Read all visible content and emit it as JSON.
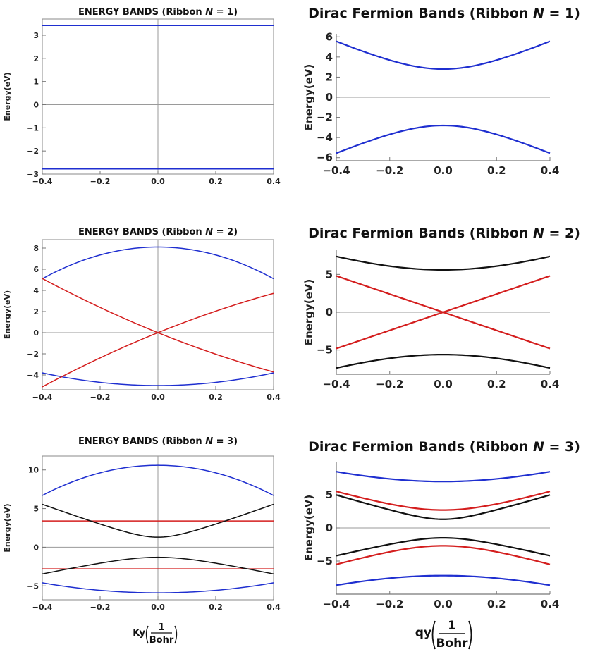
{
  "chart_data": [
    {
      "id": "left-n1",
      "type": "line",
      "title": "ENERGY BANDS (Ribbon N = 1)",
      "title_prefix": "ENERGY BANDS (Ribbon ",
      "title_n": "N",
      "title_suffix": " = 1)",
      "ylabel": "Energy(eV)",
      "xlabel": "",
      "xlim": [
        -0.4,
        0.4
      ],
      "ylim": [
        -3.0,
        3.7
      ],
      "xticks": [
        -0.4,
        -0.2,
        0.0,
        0.2,
        0.4
      ],
      "xtick_labels": [
        "−0.4",
        "−0.2",
        "0.0",
        "0.2",
        "0.4"
      ],
      "yticks": [
        -3,
        -2,
        -1,
        0,
        1,
        2,
        3
      ],
      "ytick_labels": [
        "−3",
        "−2",
        "−1",
        "0",
        "1",
        "2",
        "3"
      ],
      "series": [
        {
          "name": "band 1",
          "color": "#1f2fd0",
          "kind": "const",
          "e0": 3.42
        },
        {
          "name": "band 2",
          "color": "#1f2fd0",
          "kind": "const",
          "e0": -2.78
        }
      ]
    },
    {
      "id": "right-n1",
      "type": "line",
      "title": "Dirac Fermion Bands (Ribbon N = 1)",
      "title_prefix": "Dirac Fermion Bands (Ribbon ",
      "title_n": "N",
      "title_suffix": " = 1)",
      "ylabel": "Energy(eV)",
      "xlabel": "",
      "xlim": [
        -0.4,
        0.4
      ],
      "ylim": [
        -6.3,
        6.3
      ],
      "xticks": [
        -0.4,
        -0.2,
        0.0,
        0.2,
        0.4
      ],
      "xtick_labels": [
        "−0.4",
        "−0.2",
        "0.0",
        "0.2",
        "0.4"
      ],
      "yticks": [
        -6,
        -4,
        -2,
        0,
        2,
        4,
        6
      ],
      "ytick_labels": [
        "−6",
        "−4",
        "−2",
        "0",
        "2",
        "4",
        "6"
      ],
      "series": [
        {
          "name": "upper band",
          "color": "#1f2fd0",
          "kind": "hyp",
          "e0": 2.8,
          "v": 12.0
        },
        {
          "name": "lower band",
          "color": "#1f2fd0",
          "kind": "hyp",
          "e0": -2.8,
          "v": 12.0
        }
      ]
    },
    {
      "id": "left-n2",
      "type": "line",
      "title": "ENERGY BANDS (Ribbon N = 2)",
      "title_prefix": "ENERGY BANDS (Ribbon ",
      "title_n": "N",
      "title_suffix": " = 2)",
      "ylabel": "Energy(eV)",
      "xlabel": "",
      "xlim": [
        -0.4,
        0.4
      ],
      "ylim": [
        -5.4,
        8.8
      ],
      "xticks": [
        -0.4,
        -0.2,
        0.0,
        0.2,
        0.4
      ],
      "xtick_labels": [
        "−0.4",
        "−0.2",
        "0.0",
        "0.2",
        "0.4"
      ],
      "yticks": [
        -4,
        -2,
        0,
        2,
        4,
        6,
        8
      ],
      "ytick_labels": [
        "−4",
        "−2",
        "0",
        "2",
        "4",
        "6",
        "8"
      ],
      "series": [
        {
          "name": "blue upper",
          "color": "#1f2fd0",
          "kind": "para",
          "e0": 8.1,
          "a": -18.75
        },
        {
          "name": "blue lower",
          "color": "#1f2fd0",
          "kind": "para",
          "e0": -5.0,
          "a": 7.5
        },
        {
          "name": "red rising",
          "color": "#d41e1e",
          "kind": "curve",
          "e0": 0.0,
          "b": 11.05,
          "c": 4.4
        },
        {
          "name": "red falling",
          "color": "#d41e1e",
          "kind": "curve",
          "e0": 0.0,
          "b": -11.05,
          "c": 4.4
        }
      ]
    },
    {
      "id": "right-n2",
      "type": "line",
      "title": "Dirac Fermion Bands (Ribbon N = 2)",
      "title_prefix": "Dirac Fermion Bands (Ribbon ",
      "title_n": "N",
      "title_suffix": " = 2)",
      "ylabel": "Energy(eV)",
      "xlabel": "",
      "xlim": [
        -0.4,
        0.4
      ],
      "ylim": [
        -8.2,
        8.2
      ],
      "xticks": [
        -0.4,
        -0.2,
        0.0,
        0.2,
        0.4
      ],
      "xtick_labels": [
        "−0.4",
        "−0.2",
        "0.0",
        "0.2",
        "0.4"
      ],
      "yticks": [
        -5,
        0,
        5
      ],
      "ytick_labels": [
        "−5",
        "0",
        "5"
      ],
      "series": [
        {
          "name": "black upper",
          "color": "#111111",
          "kind": "hyp",
          "e0": 5.6,
          "v": 12.0
        },
        {
          "name": "black lower",
          "color": "#111111",
          "kind": "hyp",
          "e0": -5.6,
          "v": 12.0
        },
        {
          "name": "red rising",
          "color": "#d41e1e",
          "kind": "lin",
          "slope": 12.0
        },
        {
          "name": "red falling",
          "color": "#d41e1e",
          "kind": "lin",
          "slope": -12.0
        }
      ]
    },
    {
      "id": "left-n3",
      "type": "line",
      "title": "ENERGY BANDS (Ribbon N = 3)",
      "title_prefix": "ENERGY BANDS (Ribbon ",
      "title_n": "N",
      "title_suffix": " = 3)",
      "ylabel": "Energy(eV)",
      "xlabel": "Ky(1/Bohr)",
      "xlim": [
        -0.4,
        0.4
      ],
      "ylim": [
        -6.8,
        11.8
      ],
      "xticks": [
        -0.4,
        -0.2,
        0.0,
        0.2,
        0.4
      ],
      "xtick_labels": [
        "−0.4",
        "−0.2",
        "0.0",
        "0.2",
        "0.4"
      ],
      "yticks": [
        -5,
        0,
        5,
        10
      ],
      "ytick_labels": [
        "−5",
        "0",
        "5",
        "10"
      ],
      "series": [
        {
          "name": "blue upper",
          "color": "#1f2fd0",
          "kind": "para",
          "e0": 10.6,
          "a": -24.4
        },
        {
          "name": "blue lower",
          "color": "#1f2fd0",
          "kind": "para",
          "e0": -5.9,
          "a": 8.1
        },
        {
          "name": "red flat upper",
          "color": "#d41e1e",
          "kind": "const",
          "e0": 3.4
        },
        {
          "name": "red flat lower",
          "color": "#d41e1e",
          "kind": "const",
          "e0": -2.8
        },
        {
          "name": "black upper",
          "color": "#111111",
          "kind": "hyp",
          "e0": 1.3,
          "v": 13.5
        },
        {
          "name": "black lower",
          "color": "#111111",
          "kind": "hyp",
          "e0": -1.3,
          "v": 8.0
        }
      ]
    },
    {
      "id": "right-n3",
      "type": "line",
      "title": "Dirac Fermion Bands (Ribbon N = 3)",
      "title_prefix": "Dirac Fermion Bands (Ribbon ",
      "title_n": "N",
      "title_suffix": " = 3)",
      "ylabel": "Energy(eV)",
      "xlabel": "qy(1/Bohr)",
      "xlim": [
        -0.4,
        0.4
      ],
      "ylim": [
        -10.0,
        10.0
      ],
      "xticks": [
        -0.4,
        -0.2,
        0.0,
        0.2,
        0.4
      ],
      "xtick_labels": [
        "−0.4",
        "−0.2",
        "0.0",
        "0.2",
        "0.4"
      ],
      "yticks": [
        -5,
        0,
        5
      ],
      "ytick_labels": [
        "−5",
        "0",
        "5"
      ],
      "series": [
        {
          "name": "blue upper",
          "color": "#1f2fd0",
          "kind": "hyp",
          "e0": 7.0,
          "v": 12.0
        },
        {
          "name": "red upper",
          "color": "#d41e1e",
          "kind": "hyp",
          "e0": 2.7,
          "v": 12.0
        },
        {
          "name": "black upper",
          "color": "#111111",
          "kind": "hyp",
          "e0": 1.3,
          "v": 12.0
        },
        {
          "name": "black lower",
          "color": "#111111",
          "kind": "hyp",
          "e0": -1.5,
          "v": 9.8
        },
        {
          "name": "red lower",
          "color": "#d41e1e",
          "kind": "hyp",
          "e0": -2.7,
          "v": 12.0
        },
        {
          "name": "blue lower",
          "color": "#1f2fd0",
          "kind": "hyp",
          "e0": -7.2,
          "v": 12.0
        }
      ]
    }
  ],
  "axis_labels": {
    "left_x_prefix": "Ky",
    "right_x_prefix": "qy",
    "frac_numerator": "1",
    "frac_denominator": "Bohr"
  }
}
